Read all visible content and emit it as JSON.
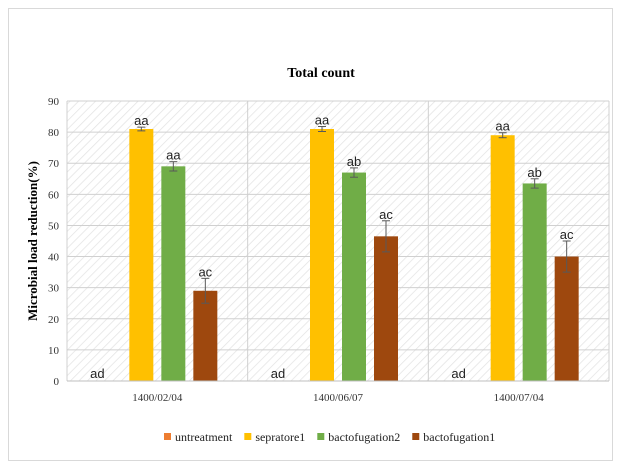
{
  "chart_data": {
    "type": "bar",
    "title": "Total count",
    "ylabel": "Microbial load reduction(%)",
    "xlabel": "",
    "ylim": [
      0,
      90
    ],
    "yticks": [
      0,
      10,
      20,
      30,
      40,
      50,
      60,
      70,
      80,
      90
    ],
    "grid": true,
    "legend_position": "bottom",
    "categories": [
      "1400/02/04",
      "1400/06/07",
      "1400/07/04"
    ],
    "series": [
      {
        "name": "untreatment",
        "color": "#ed7d31",
        "values": [
          0,
          0,
          0
        ],
        "errors": [
          0,
          0,
          0
        ],
        "labels": [
          "ad",
          "ad",
          "ad"
        ]
      },
      {
        "name": "sepratore1",
        "color": "#ffc000",
        "values": [
          81,
          81,
          79
        ],
        "errors": [
          0.6,
          0.8,
          0.8
        ],
        "labels": [
          "aa",
          "aa",
          "aa"
        ]
      },
      {
        "name": "bactofugation2",
        "color": "#70ad47",
        "values": [
          69,
          67,
          63.5
        ],
        "errors": [
          1.5,
          1.5,
          1.5
        ],
        "labels": [
          "aa",
          "ab",
          "ab"
        ]
      },
      {
        "name": "bactofugation1",
        "color": "#9e480e",
        "values": [
          29,
          46.5,
          40
        ],
        "errors": [
          4,
          5,
          5
        ],
        "labels": [
          "ac",
          "ac",
          "ac"
        ]
      }
    ]
  }
}
